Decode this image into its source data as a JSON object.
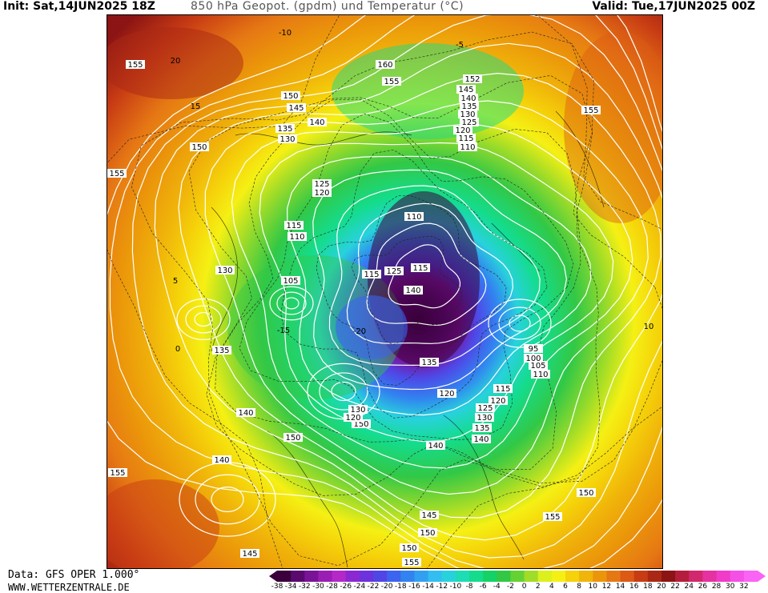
{
  "header": {
    "init": "Init: Sat,14JUN2025 18Z",
    "title": "850 hPa Geopot. (gpdm) und Temperatur (°C)",
    "valid": "Valid: Tue,17JUN2025 00Z"
  },
  "footer": {
    "source": "Data: GFS OPER 1.000°",
    "site": "WWW.WETTERZENTRALE.DE"
  },
  "legend": {
    "labels": [
      "-38",
      "-34",
      "-32",
      "-30",
      "-28",
      "-26",
      "-24",
      "-22",
      "-20",
      "-18",
      "-16",
      "-14",
      "-12",
      "-10",
      "-8",
      "-6",
      "-4",
      "-2",
      "0",
      "2",
      "4",
      "6",
      "8",
      "10",
      "12",
      "14",
      "16",
      "18",
      "20",
      "22",
      "24",
      "26",
      "28",
      "30",
      "32"
    ],
    "colors": [
      "#3b003b",
      "#5a0a6e",
      "#7a1496",
      "#9b1eb4",
      "#b428c8",
      "#8c28d2",
      "#6e32dc",
      "#5046e6",
      "#3c64f0",
      "#3282f0",
      "#32a0f0",
      "#32bef0",
      "#28d2dc",
      "#1edcb4",
      "#14dc8c",
      "#14d264",
      "#32c846",
      "#64d232",
      "#a0dc28",
      "#dcf01e",
      "#f5f014",
      "#f5d20a",
      "#f0b40a",
      "#eb960a",
      "#e67814",
      "#dc5a14",
      "#c83c14",
      "#aa2814",
      "#8c1414",
      "#b41e3c",
      "#d2286e",
      "#e632a0",
      "#f03cc8",
      "#f550e6",
      "#fa64f5"
    ]
  },
  "geopotential_labels": [
    "155",
    "160",
    "155",
    "150",
    "145",
    "140",
    "135",
    "130",
    "150",
    "155",
    "125",
    "120",
    "115",
    "110",
    "105",
    "130",
    "135",
    "140",
    "150",
    "140",
    "155",
    "145",
    "150",
    "155",
    "110",
    "125",
    "115",
    "140",
    "135",
    "120",
    "130",
    "150",
    "140",
    "145",
    "150",
    "155",
    "115",
    "120",
    "125",
    "130",
    "135",
    "140",
    "95",
    "100",
    "105",
    "110",
    "150",
    "155",
    "120",
    "115",
    "152",
    "145",
    "140",
    "135",
    "130",
    "125",
    "120",
    "115",
    "110"
  ],
  "temperature_labels": [
    "-10",
    "-5",
    "5",
    "0",
    "-15",
    "-20",
    "20",
    "15",
    "10"
  ]
}
